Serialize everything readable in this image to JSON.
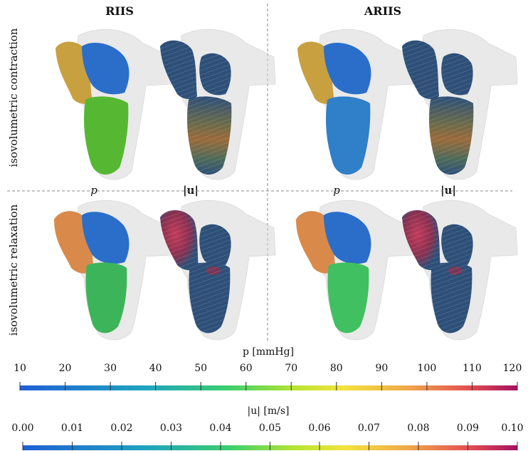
{
  "columns": [
    "RIIS",
    "ARIIS"
  ],
  "rows": [
    "isovolumetric contraction",
    "isovolumetric relaxation"
  ],
  "panel_labels": [
    "p",
    "|u|",
    "p",
    "|u|"
  ],
  "colorbars": [
    {
      "title": "p [mmHg]",
      "ticks": [
        "10",
        "20",
        "30",
        "40",
        "50",
        "60",
        "70",
        "80",
        "90",
        "100",
        "110",
        "120"
      ],
      "range": [
        10,
        120
      ]
    },
    {
      "title": "|u| [m/s]",
      "ticks": [
        "0.00",
        "0.01",
        "0.02",
        "0.03",
        "0.04",
        "0.05",
        "0.06",
        "0.07",
        "0.08",
        "0.09",
        "0.10"
      ],
      "range": [
        0,
        0.1
      ]
    }
  ],
  "colors": {
    "atrium_orange_top": "#c8a040",
    "atrium_orange_bottom": "#d98a4a",
    "atrium_blue": "#2a6ec9",
    "ventricle_green_top": "#56b832",
    "ventricle_blue_top": "#2f7fc9",
    "ventricle_green_bottom": "#3cb55a",
    "ventricle_green_bottom2": "#40c060",
    "shell": "#d8d8d8",
    "flow_blue": "#2d4f78"
  }
}
